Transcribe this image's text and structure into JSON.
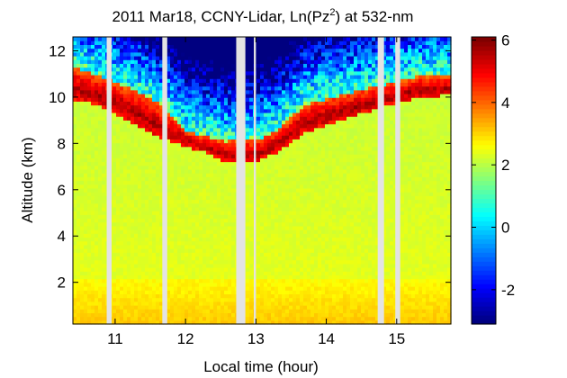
{
  "chart_data": {
    "type": "heatmap",
    "title_main": "2011 Mar18, CCNY-Lidar, Ln(Pz",
    "title_sup": "2",
    "title_end": ") at 532-nm",
    "xlabel": "Local time (hour)",
    "ylabel": "Altitude (km)",
    "xlim": [
      10.4,
      15.77
    ],
    "ylim": [
      0.2,
      12.6
    ],
    "xticks": [
      11,
      12,
      13,
      14,
      15
    ],
    "yticks": [
      2,
      4,
      6,
      8,
      10,
      12
    ],
    "colorbar": {
      "colormap": "jet",
      "clim": [
        -3.1,
        6.1
      ],
      "ticks": [
        -2,
        0,
        2,
        4,
        6
      ]
    },
    "data_gaps_hours": [
      [
        10.88,
        10.95
      ],
      [
        11.67,
        11.74
      ],
      [
        12.72,
        12.85
      ],
      [
        12.97,
        13.0
      ],
      [
        14.73,
        14.82
      ],
      [
        14.98,
        15.05
      ]
    ],
    "cloud_layer": {
      "description_points": [
        {
          "time": 10.45,
          "base_km": 9.9,
          "top_km": 11.3
        },
        {
          "time": 10.8,
          "base_km": 9.6,
          "top_km": 10.9
        },
        {
          "time": 11.2,
          "base_km": 9.0,
          "top_km": 10.4
        },
        {
          "time": 11.6,
          "base_km": 8.3,
          "top_km": 9.8
        },
        {
          "time": 12.0,
          "base_km": 7.9,
          "top_km": 8.6
        },
        {
          "time": 12.3,
          "base_km": 7.6,
          "top_km": 8.3
        },
        {
          "time": 12.55,
          "base_km": 7.2,
          "top_km": 8.1
        },
        {
          "time": 13.05,
          "base_km": 7.3,
          "top_km": 8.2
        },
        {
          "time": 13.3,
          "base_km": 7.6,
          "top_km": 8.6
        },
        {
          "time": 13.7,
          "base_km": 8.5,
          "top_km": 9.7
        },
        {
          "time": 14.2,
          "base_km": 9.0,
          "top_km": 10.1
        },
        {
          "time": 14.6,
          "base_km": 9.4,
          "top_km": 10.4
        },
        {
          "time": 15.3,
          "base_km": 10.0,
          "top_km": 10.9
        },
        {
          "time": 15.75,
          "base_km": 10.1,
          "top_km": 10.9
        }
      ]
    }
  }
}
